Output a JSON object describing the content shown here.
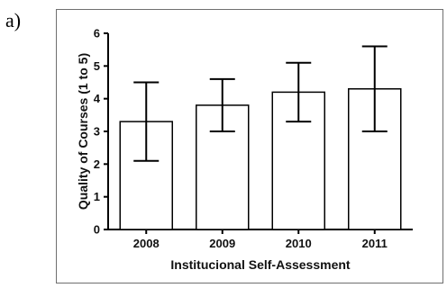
{
  "panel_label": "a)",
  "chart_data": {
    "type": "bar",
    "title": "",
    "xlabel": "Institucional Self-Assessment",
    "ylabel": "Quality of Courses (1 to 5)",
    "categories": [
      "2008",
      "2009",
      "2010",
      "2011"
    ],
    "values": [
      3.3,
      3.8,
      4.2,
      4.3
    ],
    "error_high": [
      4.5,
      4.6,
      5.1,
      5.6
    ],
    "error_low": [
      2.1,
      3.0,
      3.3,
      3.0
    ],
    "ylim": [
      0,
      6
    ],
    "yticks": [
      "0",
      "1",
      "2",
      "3",
      "4",
      "5",
      "6"
    ],
    "grid": false,
    "bar_fill": "#ffffff",
    "bar_stroke": "#000000"
  }
}
